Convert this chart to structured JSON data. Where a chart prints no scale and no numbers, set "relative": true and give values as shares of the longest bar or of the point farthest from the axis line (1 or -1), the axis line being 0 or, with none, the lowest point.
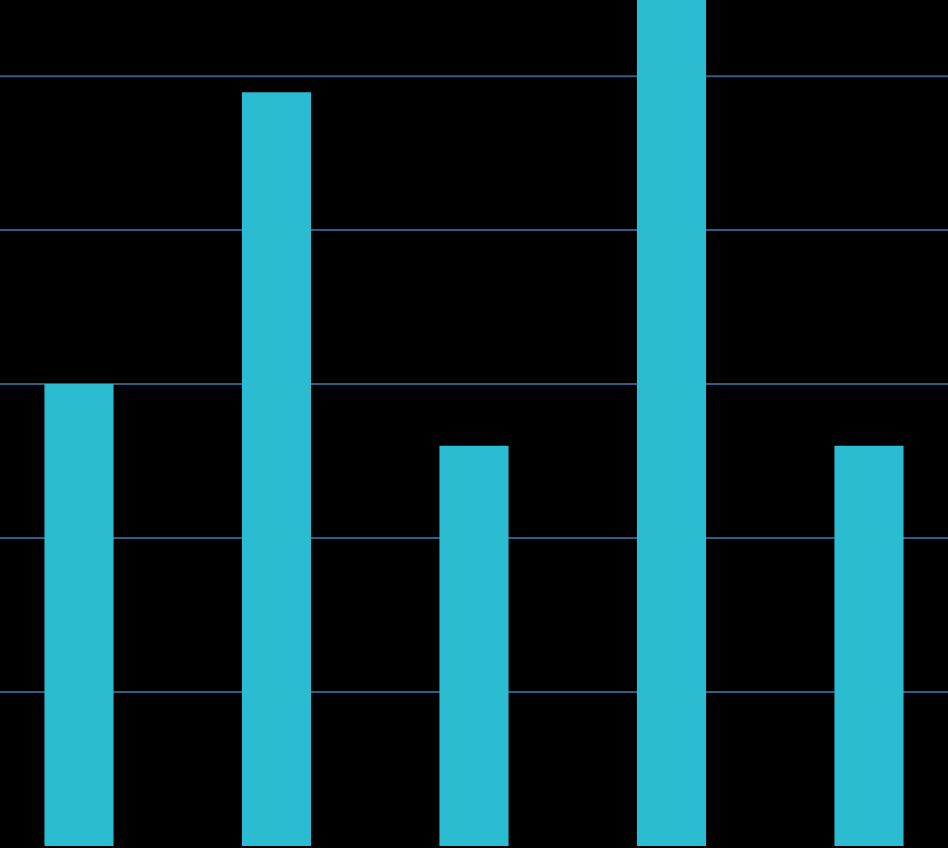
{
  "chart_data": {
    "type": "bar",
    "relative": true,
    "categories": [
      null,
      null,
      null,
      null,
      null
    ],
    "values": [
      0.546,
      0.891,
      0.473,
      1,
      0.473
    ],
    "ref_lines": [
      {
        "axis": "y",
        "value": 0.182,
        "color": "#2c5f86"
      },
      {
        "axis": "y",
        "value": 0.364,
        "color": "#2c5f86"
      },
      {
        "axis": "y",
        "value": 0.546,
        "color": "#2c5f86"
      },
      {
        "axis": "y",
        "value": 0.728,
        "color": "#2c5f86"
      },
      {
        "axis": "y",
        "value": 0.91,
        "color": "#2c5f86"
      }
    ],
    "color": "#2bbcd2",
    "legend": false
  }
}
